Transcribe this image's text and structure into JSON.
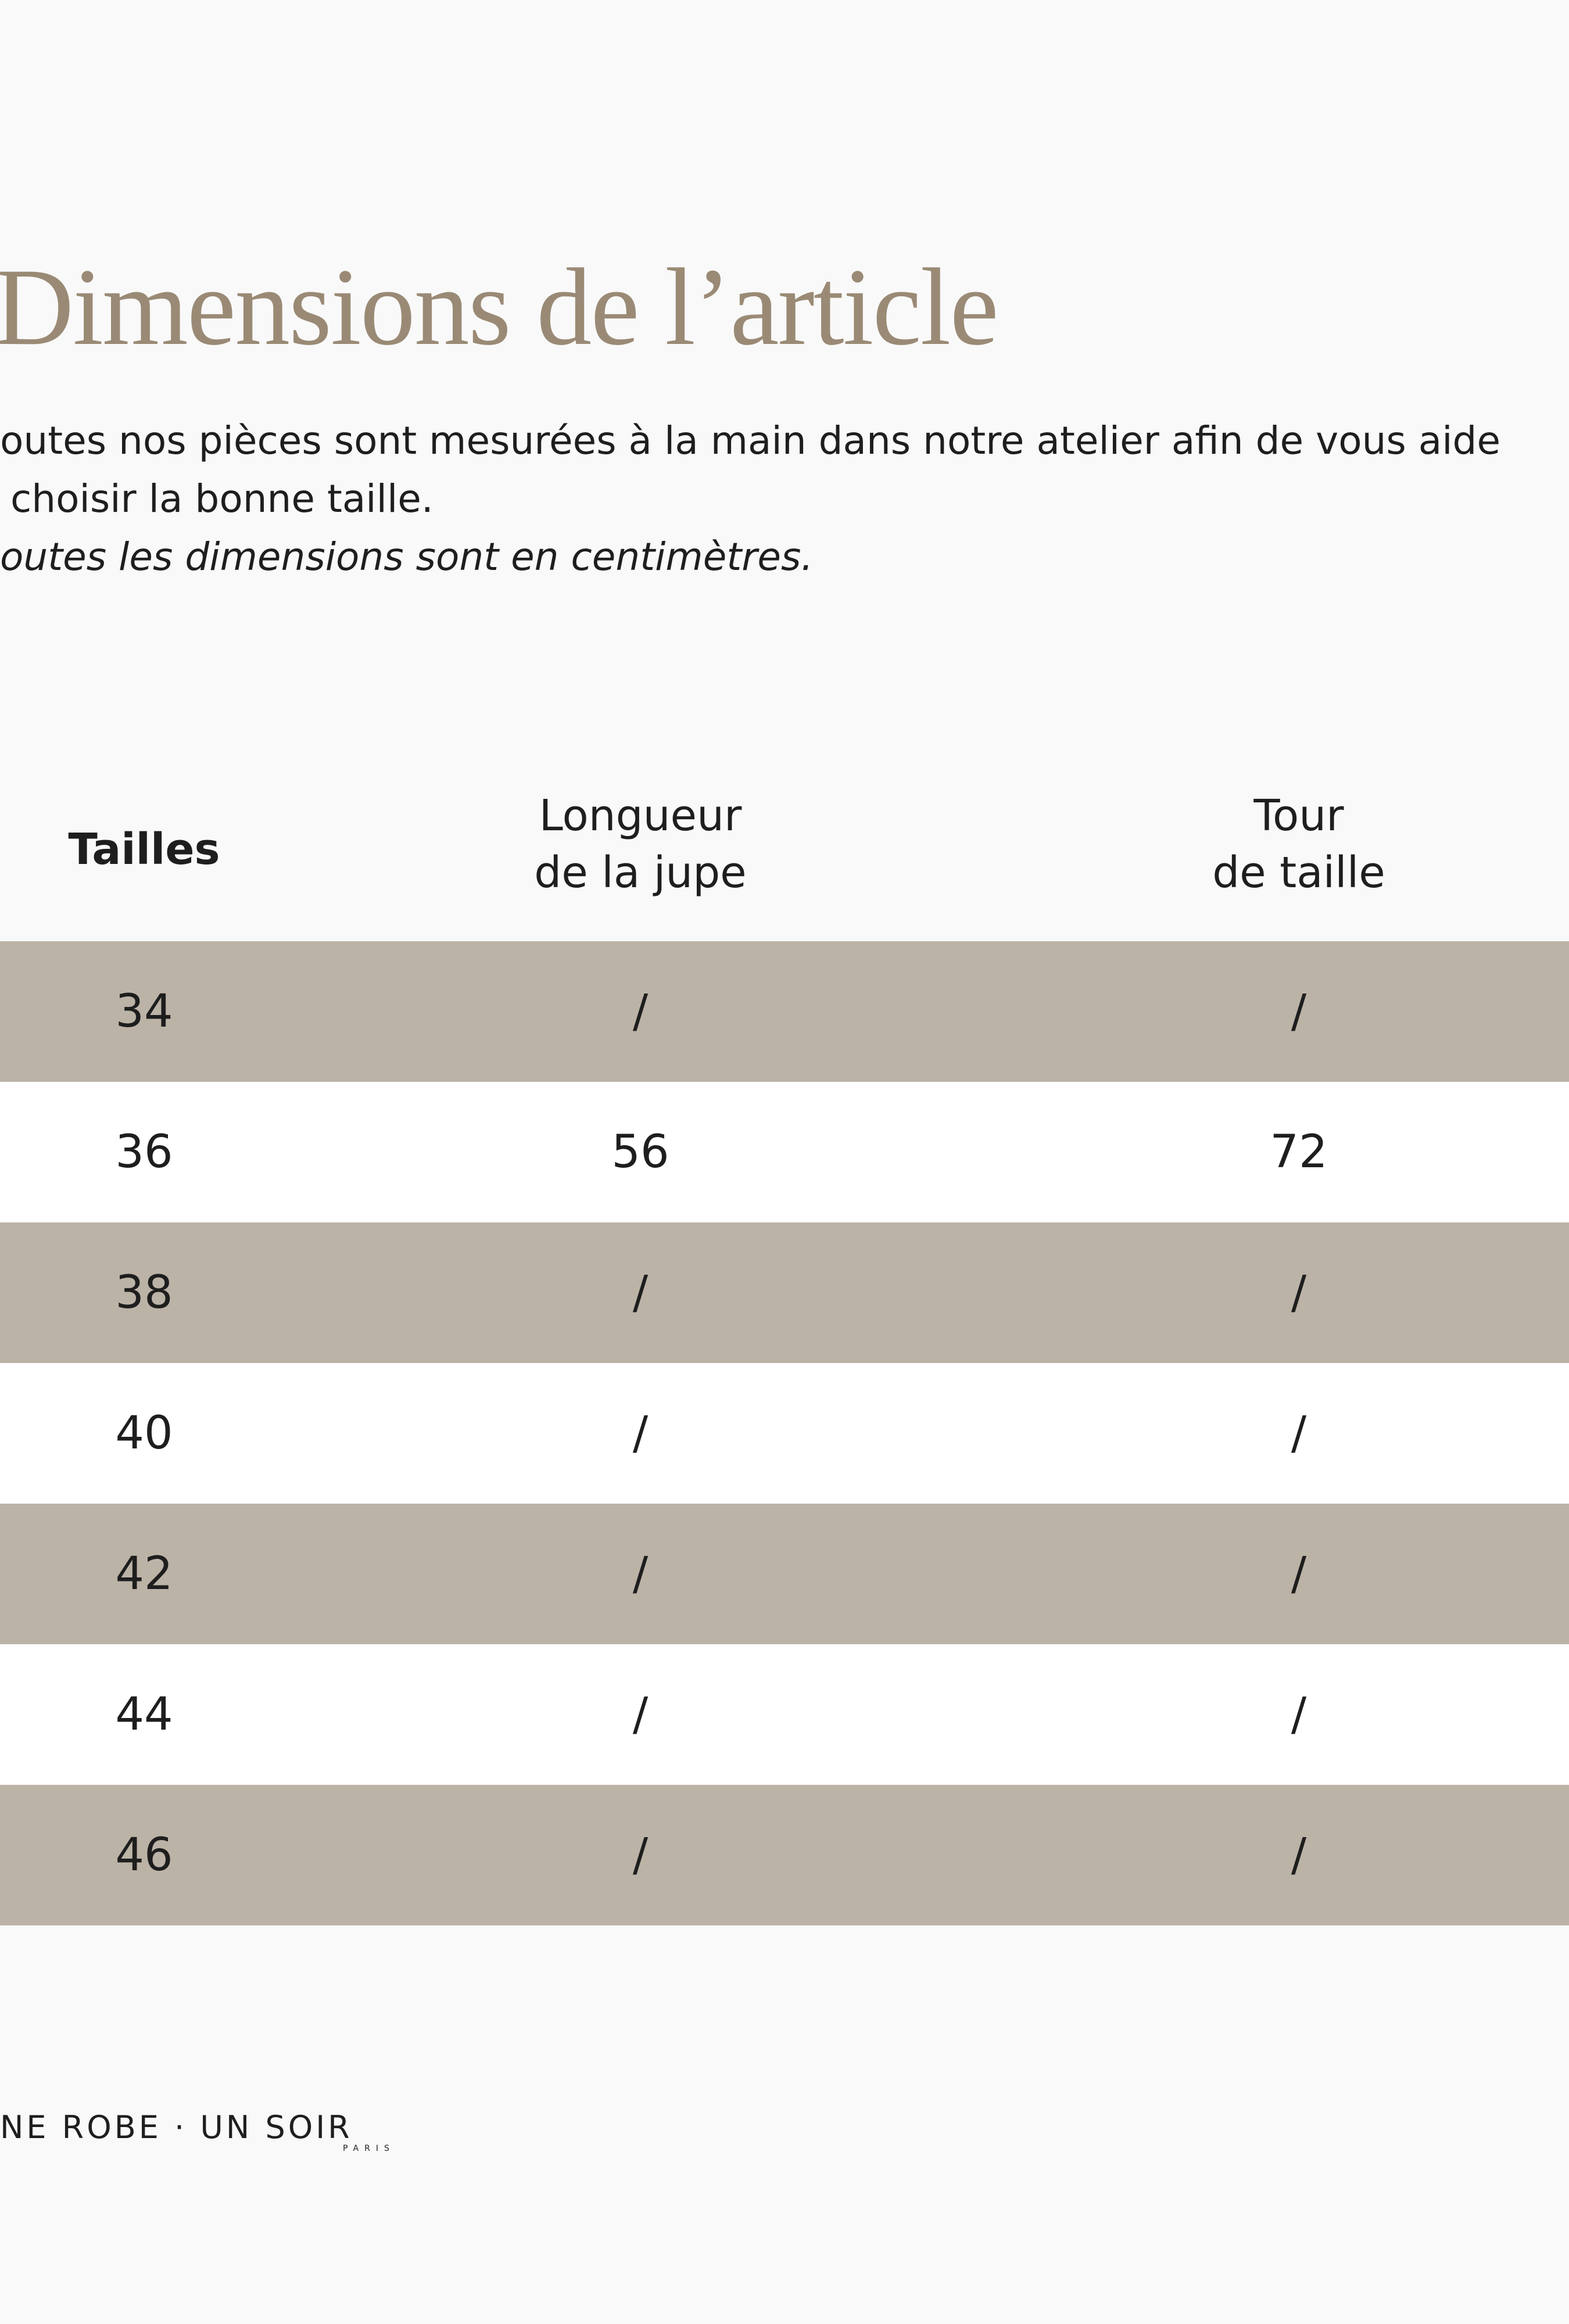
{
  "header": {
    "title": "Dimensions de l’article",
    "intro": [
      "outes nos pièces sont mesurées à la main dans notre atelier afin de vous aide",
      "choisir la bonne taille."
    ],
    "note": "outes les dimensions sont en centimètres."
  },
  "table": {
    "headers": [
      [
        "Tailles"
      ],
      [
        "Longueur",
        "de la jupe"
      ],
      [
        "Tour",
        "de taille"
      ]
    ],
    "rows": [
      [
        "34",
        "/",
        "/"
      ],
      [
        "36",
        "56",
        "72"
      ],
      [
        "38",
        "/",
        "/"
      ],
      [
        "40",
        "/",
        "/"
      ],
      [
        "42",
        "/",
        "/"
      ],
      [
        "44",
        "/",
        "/"
      ],
      [
        "46",
        "/",
        "/"
      ]
    ]
  },
  "footer": {
    "brand": "NE ROBE · UN SOIR",
    "city": "PARIS"
  }
}
